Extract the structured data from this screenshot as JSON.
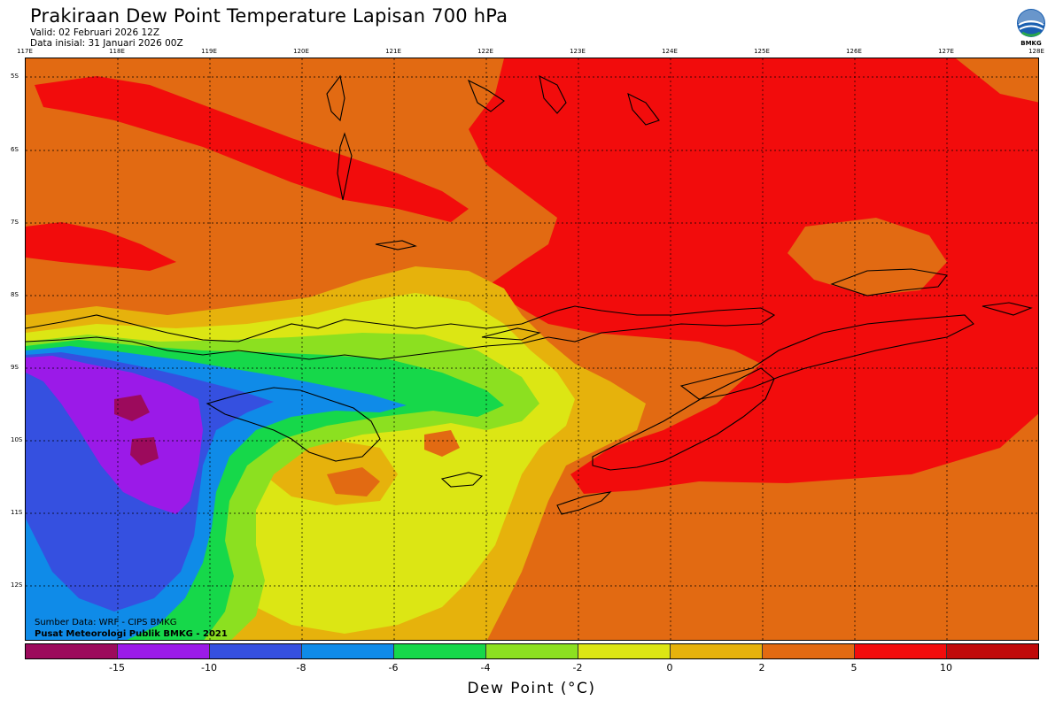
{
  "header": {
    "title": "Prakiraan Dew Point Temperature Lapisan 700 hPa",
    "valid": "Valid: 02 Februari 2026 12Z",
    "init": "Data inisial: 31 Januari 2026 00Z",
    "logo_text": "BMKG"
  },
  "axes": {
    "lon_labels": [
      "117E",
      "118E",
      "119E",
      "120E",
      "121E",
      "122E",
      "123E",
      "124E",
      "125E",
      "126E",
      "127E",
      "128E"
    ],
    "lat_labels": [
      "5S",
      "6S",
      "7S",
      "8S",
      "9S",
      "10S",
      "11S",
      "12S"
    ]
  },
  "credits": {
    "line1": "Sumber Data: WRF - CIPS BMKG",
    "line2": "Pusat Meteorologi Publik BMKG - 2021"
  },
  "colorbar": {
    "colors": [
      "#9c0a5c",
      "#9b1ae8",
      "#3550e0",
      "#0f8be8",
      "#16d84a",
      "#8ce020",
      "#dce614",
      "#e6b20c",
      "#e26a12",
      "#f20c0c",
      "#c00a0a"
    ],
    "ticks": [
      "-15",
      "-10",
      "-8",
      "-6",
      "-4",
      "-2",
      "0",
      "2",
      "5",
      "10"
    ],
    "label": "Dew Point (°C)"
  },
  "colors": {
    "orange": "#e26a12",
    "red": "#f20c0c",
    "amber": "#e6b20c",
    "yellow": "#dce614",
    "lightgreen": "#8ce020",
    "green": "#16d84a",
    "blue": "#0f8be8",
    "darkblue": "#3550e0",
    "purple": "#9b1ae8",
    "magenta": "#9c0a5c"
  }
}
